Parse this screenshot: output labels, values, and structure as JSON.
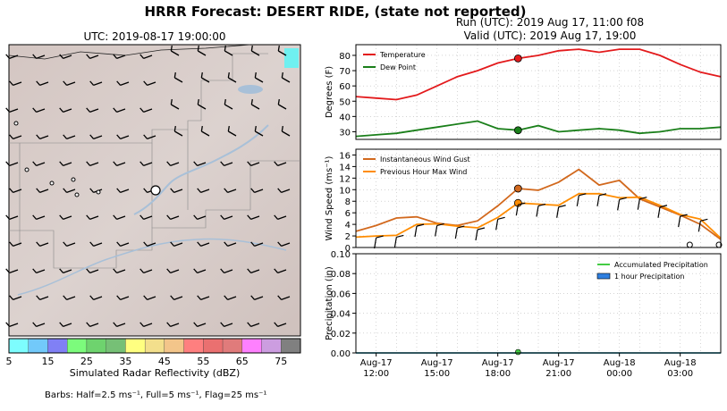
{
  "header": {
    "title": "HRRR Forecast: DESERT RIDE, (state not reported)",
    "run": "Run (UTC): 2019 Aug 17, 11:00 f08",
    "valid": "Valid (UTC): 2019 Aug 17, 19:00"
  },
  "map": {
    "title": "UTC: 2019-08-17 19:00:00",
    "colorbar_label": "Simulated Radar Reflectivity (dBZ)",
    "colorbar_ticks": [
      "5",
      "15",
      "25",
      "35",
      "45",
      "55",
      "65",
      "75"
    ],
    "colorbar_colors": [
      "#7dfdfe",
      "#72c9fa",
      "#8080f5",
      "#7cfb7c",
      "#6ed36e",
      "#76c076",
      "#ffff80",
      "#f3df8c",
      "#f3c58a",
      "#fe7f7f",
      "#ea7070",
      "#e07b7b",
      "#fe80fe",
      "#cc9de0",
      "#808080"
    ],
    "barb_note": "Barbs: Half=2.5 ms⁻¹, Full=5 ms⁻¹, Flag=25 ms⁻¹"
  },
  "chart_data": [
    {
      "type": "line",
      "ylabel": "Degrees (F)",
      "ylim": [
        25,
        87
      ],
      "yticks": [
        30,
        40,
        50,
        60,
        70,
        80
      ],
      "grid": true,
      "legend": "top-left",
      "x": [
        "2019-08-17 11:00",
        "12:00",
        "13:00",
        "14:00",
        "15:00",
        "16:00",
        "17:00",
        "18:00",
        "19:00",
        "20:00",
        "21:00",
        "22:00",
        "23:00",
        "2019-08-18 00:00",
        "01:00",
        "02:00",
        "03:00",
        "04:00",
        "05:00"
      ],
      "series": [
        {
          "name": "Temperature",
          "color": "#e31a1c",
          "values": [
            53,
            52,
            51,
            54,
            60,
            66,
            70,
            75,
            78,
            80,
            83,
            84,
            82,
            84,
            84,
            80,
            74,
            69,
            66
          ]
        },
        {
          "name": "Dew Point",
          "color": "#1a7f1a",
          "values": [
            27,
            28,
            29,
            31,
            33,
            35,
            37,
            32,
            31,
            34,
            30,
            31,
            32,
            31,
            29,
            30,
            32,
            32,
            33
          ]
        }
      ],
      "highlight_x": "19:00"
    },
    {
      "type": "line",
      "ylabel": "Wind Speed (ms⁻¹)",
      "ylim": [
        0,
        17
      ],
      "yticks": [
        0,
        2,
        4,
        6,
        8,
        10,
        12,
        14,
        16
      ],
      "grid": true,
      "legend": "top-left",
      "series": [
        {
          "name": "Instantaneous Wind Gust",
          "color": "#d2691e",
          "values": [
            2.8,
            3.8,
            5.1,
            5.3,
            4.2,
            3.8,
            4.6,
            7.2,
            10.2,
            9.9,
            11.3,
            13.5,
            10.8,
            11.6,
            8.4,
            7.0,
            5.6,
            4.0,
            1.4
          ]
        },
        {
          "name": "Previous Hour Max Wind",
          "color": "#ff8c00",
          "values": [
            1.8,
            2.0,
            2.1,
            4.0,
            4.1,
            3.7,
            3.4,
            5.2,
            7.7,
            7.5,
            7.3,
            9.3,
            9.3,
            8.6,
            8.7,
            7.3,
            5.7,
            4.9,
            1.6
          ]
        }
      ]
    },
    {
      "type": "area",
      "ylabel": "Precipitation (in)",
      "ylim": [
        0,
        0.1
      ],
      "yticks": [
        "0.00",
        "0.02",
        "0.04",
        "0.06",
        "0.08",
        "0.10"
      ],
      "grid": true,
      "legend": "top-right",
      "series": [
        {
          "name": "Accumulated Precipitation",
          "color": "#44cc44",
          "values": [
            0,
            0,
            0,
            0,
            0,
            0,
            0,
            0,
            0,
            0,
            0,
            0,
            0,
            0,
            0,
            0,
            0,
            0,
            0
          ]
        },
        {
          "name": "1 hour Precipitation",
          "color": "#2e7fe0",
          "values": [
            0,
            0,
            0,
            0,
            0,
            0,
            0,
            0,
            0,
            0,
            0,
            0,
            0,
            0,
            0,
            0,
            0,
            0,
            0
          ]
        }
      ],
      "xtick_labels": [
        [
          "Aug-17",
          "12:00"
        ],
        [
          "Aug-17",
          "15:00"
        ],
        [
          "Aug-17",
          "18:00"
        ],
        [
          "Aug-17",
          "21:00"
        ],
        [
          "Aug-18",
          "00:00"
        ],
        [
          "Aug-18",
          "03:00"
        ]
      ]
    }
  ]
}
